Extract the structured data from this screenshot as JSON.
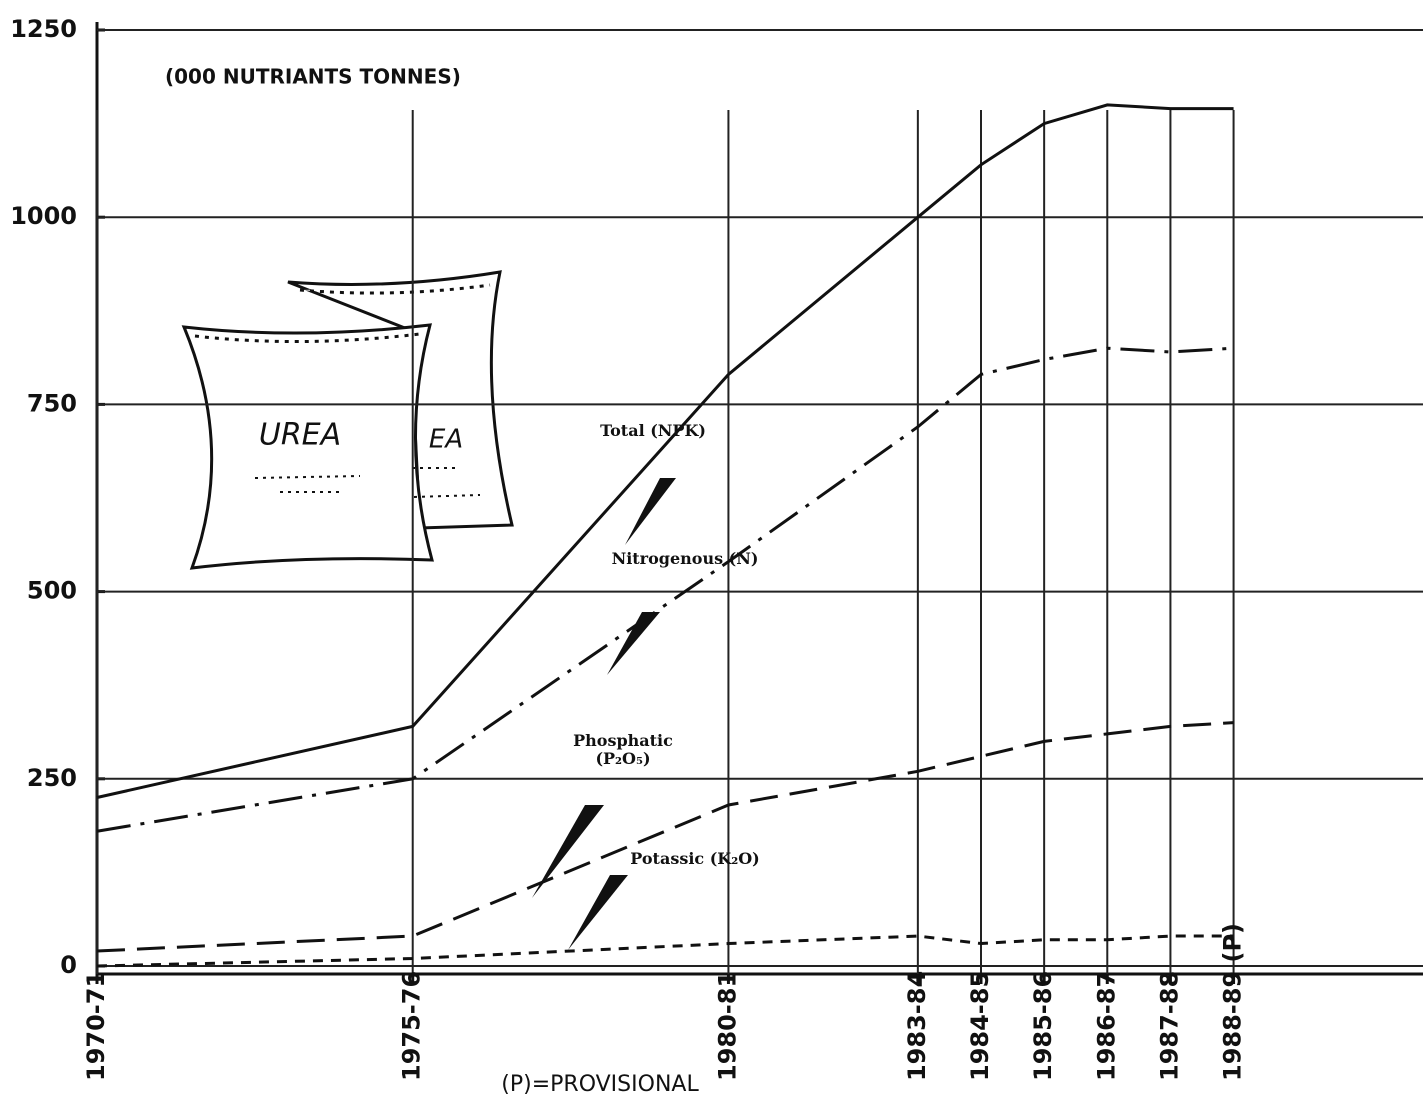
{
  "chart_data": {
    "type": "line",
    "annotations": [
      "(000 NUTRIANTS TONNES)",
      "(P)=PROVISIONAL"
    ],
    "illustration_labels": [
      "UREA",
      "EA"
    ],
    "x": [
      1970,
      1975,
      1980,
      1983,
      1984,
      1985,
      1986,
      1987,
      1988
    ],
    "xlim": [
      1970,
      1991
    ],
    "xticks": [
      {
        "value": 1970,
        "label": "1970-71"
      },
      {
        "value": 1975,
        "label": "1975-76"
      },
      {
        "value": 1980,
        "label": "1980-81"
      },
      {
        "value": 1983,
        "label": "1983-84"
      },
      {
        "value": 1984,
        "label": "1984-85"
      },
      {
        "value": 1985,
        "label": "1985-86"
      },
      {
        "value": 1986,
        "label": "1986-87"
      },
      {
        "value": 1987,
        "label": "1987-88"
      },
      {
        "value": 1988,
        "label": "1988-89 (P)"
      }
    ],
    "ylim": [
      0,
      1250
    ],
    "yticks": [
      0,
      250,
      500,
      750,
      1000,
      1250
    ],
    "grid": true,
    "series": [
      {
        "name": "Total (NPK)",
        "color": "#111111",
        "dash": "solid",
        "values": [
          225,
          320,
          790,
          1000,
          1070,
          1125,
          1150,
          1145,
          1145
        ]
      },
      {
        "name": "Nitrogenous (N)",
        "color": "#111111",
        "dash": "dashdot",
        "values": [
          180,
          250,
          540,
          720,
          790,
          810,
          825,
          820,
          825
        ]
      },
      {
        "name": "Phosphatic (P₂O₅)",
        "color": "#111111",
        "dash": "dash",
        "values": [
          20,
          40,
          215,
          260,
          280,
          300,
          310,
          320,
          325
        ]
      },
      {
        "name": "Potassic (K₂O)",
        "color": "#111111",
        "dash": "dot",
        "values": [
          0,
          10,
          30,
          40,
          30,
          35,
          35,
          40,
          40
        ]
      }
    ]
  }
}
